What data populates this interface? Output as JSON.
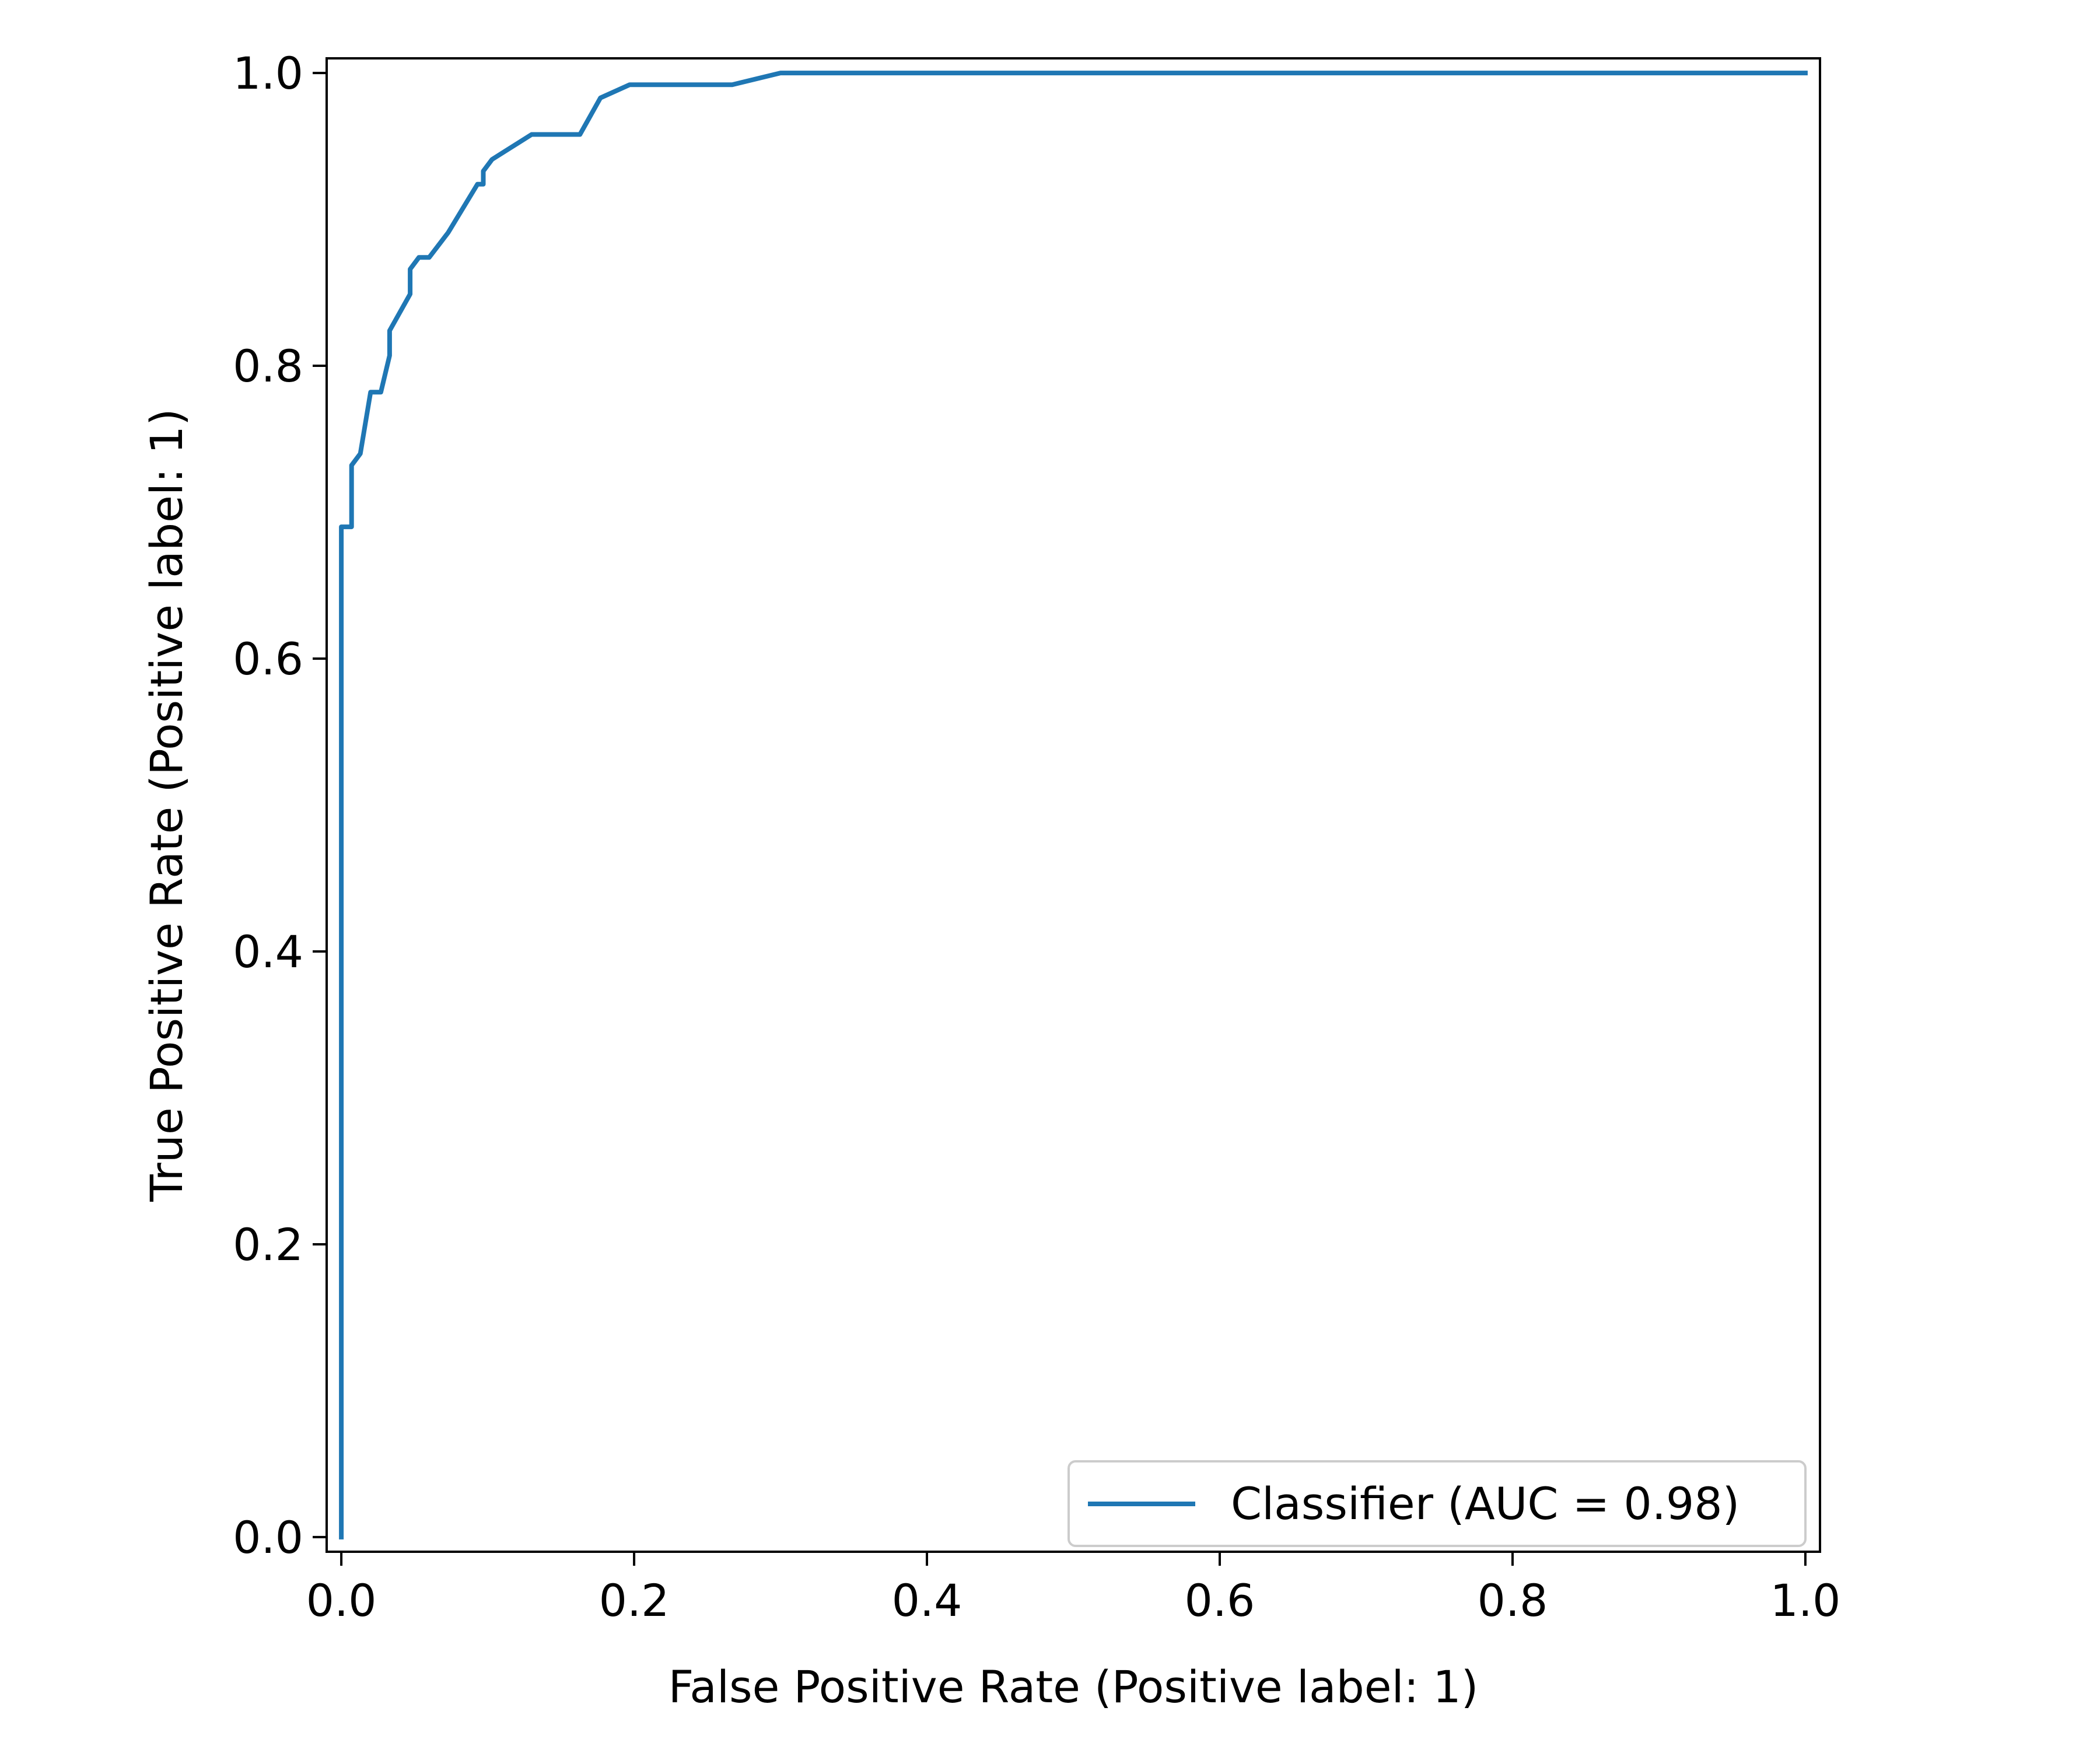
{
  "chart_data": {
    "type": "line",
    "title": "",
    "xlabel": "False Positive Rate (Positive label: 1)",
    "ylabel": "True Positive Rate (Positive label: 1)",
    "xlim": [
      -0.01,
      1.01
    ],
    "ylim": [
      -0.01,
      1.01
    ],
    "xticks": [
      0.0,
      0.2,
      0.4,
      0.6,
      0.8,
      1.0
    ],
    "xtick_labels": [
      "0.0",
      "0.2",
      "0.4",
      "0.6",
      "0.8",
      "1.0"
    ],
    "yticks": [
      0.0,
      0.2,
      0.4,
      0.6,
      0.8,
      1.0
    ],
    "ytick_labels": [
      "0.0",
      "0.2",
      "0.4",
      "0.6",
      "0.8",
      "1.0"
    ],
    "grid": false,
    "legend": {
      "placement": "lower-right"
    },
    "series": [
      {
        "name": "Classifier (AUC = 0.98)",
        "color": "#1f77b4",
        "x": [
          0.0,
          0.0,
          0.0,
          0.007,
          0.007,
          0.013,
          0.02,
          0.027,
          0.033,
          0.033,
          0.047,
          0.047,
          0.053,
          0.06,
          0.073,
          0.093,
          0.097,
          0.097,
          0.103,
          0.13,
          0.163,
          0.177,
          0.197,
          0.267,
          0.3,
          1.0
        ],
        "y": [
          0.0,
          0.69,
          0.69,
          0.69,
          0.732,
          0.74,
          0.782,
          0.782,
          0.807,
          0.824,
          0.849,
          0.866,
          0.874,
          0.874,
          0.891,
          0.924,
          0.924,
          0.933,
          0.941,
          0.958,
          0.958,
          0.983,
          0.992,
          0.992,
          1.0,
          1.0
        ]
      }
    ]
  }
}
